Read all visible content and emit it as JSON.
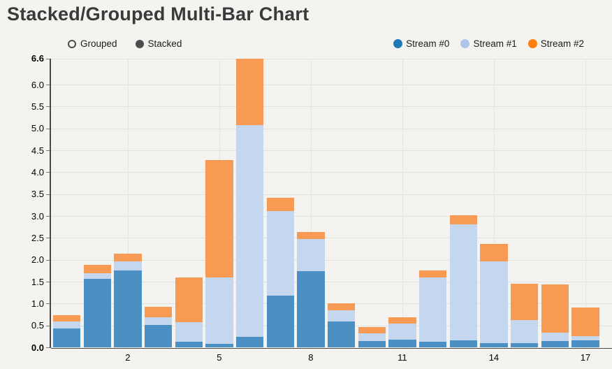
{
  "page": {
    "title": "Stacked/Grouped Multi-Bar Chart"
  },
  "controls": {
    "grouped_label": "Grouped",
    "stacked_label": "Stacked",
    "selected": "Stacked"
  },
  "legend": [
    {
      "label": "Stream #0",
      "color": "#1f77b4"
    },
    {
      "label": "Stream #1",
      "color": "#aec7e8"
    },
    {
      "label": "Stream #2",
      "color": "#ff7f0e"
    }
  ],
  "chart_data": {
    "type": "bar",
    "mode": "stacked",
    "title": "Stacked/Grouped Multi-Bar Chart",
    "x": [
      0,
      1,
      2,
      3,
      4,
      5,
      6,
      7,
      8,
      9,
      10,
      11,
      12,
      13,
      14,
      15,
      16,
      17
    ],
    "x_tick_positions": [
      2,
      5,
      8,
      11,
      14,
      17
    ],
    "x_tick_labels": [
      "2",
      "5",
      "8",
      "11",
      "14",
      "17"
    ],
    "ylim": [
      0,
      6.6
    ],
    "y_ticks": [
      0.0,
      0.5,
      1.0,
      1.5,
      2.0,
      2.5,
      3.0,
      3.5,
      4.0,
      4.5,
      5.0,
      5.5,
      6.0,
      6.6
    ],
    "y_tick_labels": [
      "0.0",
      "0.5",
      "1.0",
      "1.5",
      "2.0",
      "2.5",
      "3.0",
      "3.5",
      "4.0",
      "4.5",
      "5.0",
      "5.5",
      "6.0",
      "6.6"
    ],
    "y_tick_bold": [
      0.0,
      6.6
    ],
    "grid": true,
    "legend_position": "top-right",
    "series": [
      {
        "name": "Stream #0",
        "color": "#1f77b4",
        "fill": "#4a90c4",
        "values": [
          0.44,
          1.57,
          1.76,
          0.52,
          0.13,
          0.08,
          0.25,
          1.19,
          1.75,
          0.6,
          0.15,
          0.18,
          0.14,
          0.16,
          0.11,
          0.1,
          0.15,
          0.17
        ]
      },
      {
        "name": "Stream #1",
        "color": "#aec7e8",
        "fill": "#c5d7ee",
        "values": [
          0.16,
          0.13,
          0.21,
          0.18,
          0.45,
          1.52,
          4.84,
          1.93,
          0.73,
          0.25,
          0.17,
          0.37,
          1.46,
          2.65,
          1.86,
          0.53,
          0.2,
          0.1
        ]
      },
      {
        "name": "Stream #2",
        "color": "#ff7f0e",
        "fill": "#f79b54",
        "values": [
          0.15,
          0.19,
          0.17,
          0.23,
          1.03,
          2.68,
          1.51,
          0.3,
          0.16,
          0.17,
          0.15,
          0.14,
          0.16,
          0.21,
          0.4,
          0.83,
          1.09,
          0.64
        ]
      }
    ],
    "stack_totals": [
      0.75,
      1.89,
      2.14,
      0.93,
      1.61,
      4.28,
      6.6,
      3.42,
      2.64,
      1.02,
      0.47,
      0.69,
      1.76,
      3.02,
      2.37,
      1.46,
      1.44,
      0.91
    ]
  }
}
